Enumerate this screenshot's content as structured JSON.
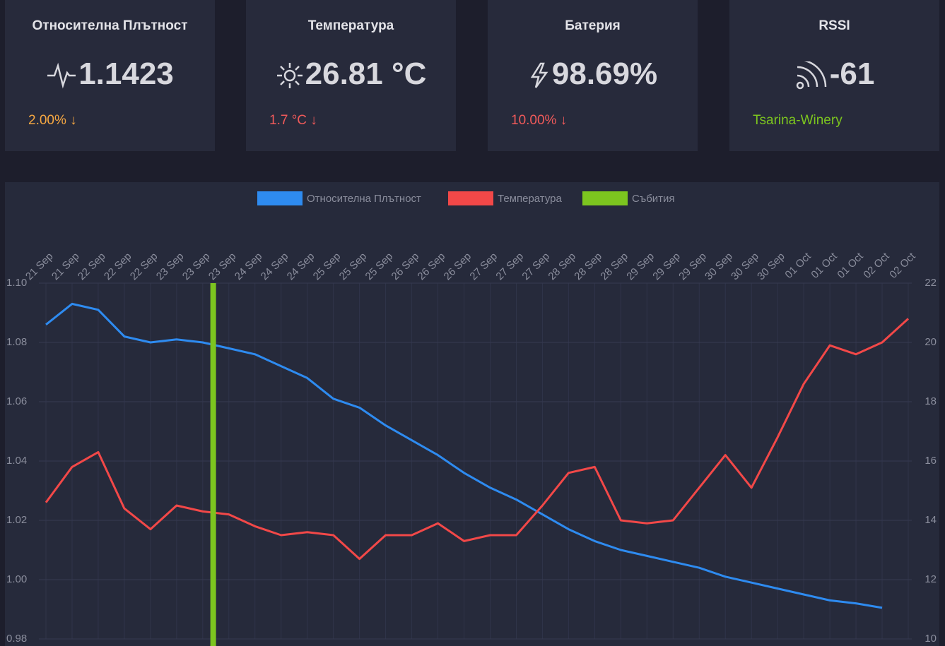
{
  "cards": [
    {
      "title": "Относителна Плътност",
      "value": "1.1423",
      "change": "2.00% ↓",
      "color": "#f5a742"
    },
    {
      "title": "Температура",
      "value": "26.81 °C",
      "change": "1.7 °C ↓",
      "color": "#f05a5a"
    },
    {
      "title": "Батерия",
      "value": "98.69%",
      "change": "10.00% ↓",
      "color": "#f05a5a"
    },
    {
      "title": "RSSI",
      "value": "-61",
      "change": "Tsarina-Winery",
      "color": "#7cc51f"
    }
  ],
  "chart_data": {
    "type": "line",
    "categories": [
      "21 Sep",
      "21 Sep",
      "22 Sep",
      "22 Sep",
      "22 Sep",
      "23 Sep",
      "23 Sep",
      "23 Sep",
      "24 Sep",
      "24 Sep",
      "24 Sep",
      "25 Sep",
      "25 Sep",
      "25 Sep",
      "26 Sep",
      "26 Sep",
      "26 Sep",
      "27 Sep",
      "27 Sep",
      "27 Sep",
      "28 Sep",
      "28 Sep",
      "28 Sep",
      "29 Sep",
      "29 Sep",
      "29 Sep",
      "30 Sep",
      "30 Sep",
      "30 Sep",
      "01 Oct",
      "01 Oct",
      "01 Oct",
      "02 Oct",
      "02 Oct"
    ],
    "series": [
      {
        "name": "Относителна Плътност",
        "color": "#2e8bf0",
        "axis": "y",
        "values": [
          1.086,
          1.093,
          1.091,
          1.082,
          1.08,
          1.081,
          1.08,
          1.078,
          1.076,
          1.072,
          1.068,
          1.061,
          1.058,
          1.052,
          1.047,
          1.042,
          1.036,
          1.031,
          1.027,
          1.022,
          1.017,
          1.013,
          1.01,
          1.008,
          1.006,
          1.004,
          1.001,
          0.999,
          0.997,
          0.995,
          0.993,
          0.992,
          0.9905,
          null
        ]
      },
      {
        "name": "Температура",
        "color": "#f24848",
        "axis": "y2",
        "values": [
          14.6,
          15.8,
          16.3,
          14.4,
          13.7,
          14.5,
          14.3,
          14.2,
          13.8,
          13.5,
          13.6,
          13.5,
          12.7,
          13.5,
          13.5,
          13.9,
          13.3,
          13.5,
          13.5,
          14.5,
          15.6,
          15.8,
          14.0,
          13.9,
          14.0,
          15.1,
          16.2,
          15.1,
          16.8,
          18.6,
          19.9,
          19.6,
          20.0,
          20.8
        ]
      }
    ],
    "events": {
      "name": "Събития",
      "color": "#7cc51f",
      "x": [
        6.4
      ]
    },
    "ylim": [
      0.98,
      1.1
    ],
    "yticks": [
      0.98,
      {
        "value": 1.0,
        "label": "1.00"
      },
      1.02,
      1.04,
      1.06,
      1.08,
      {
        "value": 1.1,
        "label": "1.10"
      }
    ],
    "y2lim": [
      10,
      22
    ],
    "y2ticks": [
      10,
      12,
      14,
      16,
      18,
      20,
      22
    ],
    "grid": true,
    "legend": "top"
  }
}
